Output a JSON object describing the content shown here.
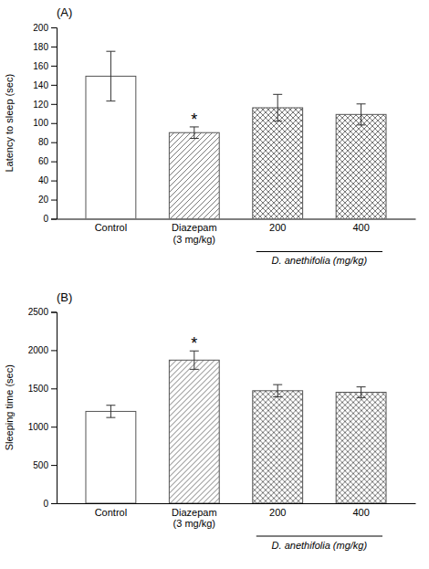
{
  "chart_data": [
    {
      "type": "bar",
      "title": "(A)",
      "ylabel": "Latency to sleep (sec)",
      "categories": [
        "Control",
        "Diazepam\n(3 mg/kg)",
        "200",
        "400"
      ],
      "values": [
        149,
        90,
        116,
        109
      ],
      "errors": [
        26,
        6,
        14,
        11
      ],
      "significance": [
        null,
        "*",
        null,
        null
      ],
      "color": "#555555",
      "ylim": [
        0,
        200
      ],
      "yticks": [
        0,
        20,
        40,
        60,
        80,
        100,
        120,
        140,
        160,
        180,
        200
      ],
      "grid": false,
      "annotations": [
        {
          "text": "D. anethifolia (mg/kg)",
          "categories": [
            "200",
            "400"
          ]
        }
      ]
    },
    {
      "type": "bar",
      "title": "(B)",
      "ylabel": "Sleeping time (sec)",
      "categories": [
        "Control",
        "Diazepam\n(3 mg/kg)",
        "200",
        "400"
      ],
      "values": [
        1200,
        1870,
        1470,
        1450
      ],
      "errors": [
        80,
        120,
        80,
        70
      ],
      "significance": [
        null,
        "*",
        null,
        null
      ],
      "color": "#555555",
      "ylim": [
        0,
        2500
      ],
      "yticks": [
        0,
        500,
        1000,
        1500,
        2000,
        2500
      ],
      "grid": false,
      "annotations": [
        {
          "text": "D. anethifolia (mg/kg)",
          "categories": [
            "200",
            "400"
          ]
        }
      ]
    }
  ]
}
